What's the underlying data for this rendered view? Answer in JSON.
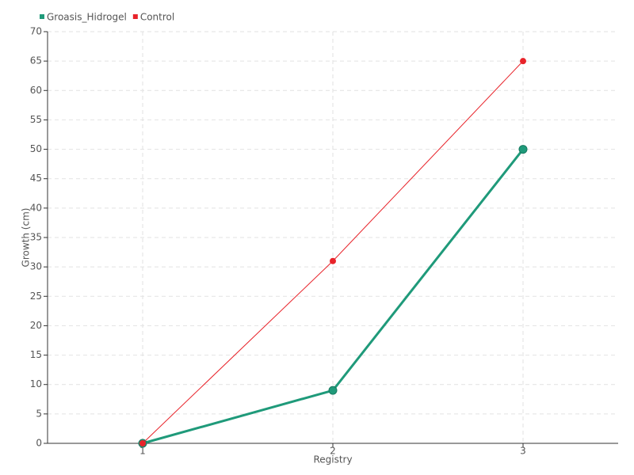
{
  "chart_data": {
    "type": "line",
    "x_label": "Registry",
    "y_label": "Growth (cm)",
    "x": [
      1,
      2,
      3
    ],
    "xlim": [
      0.5,
      3.5
    ],
    "xticks": [
      1,
      2,
      3
    ],
    "ylim": [
      0,
      70
    ],
    "yticks": [
      0,
      5,
      10,
      15,
      20,
      25,
      30,
      35,
      40,
      45,
      50,
      55,
      60,
      65,
      70
    ],
    "grid": true,
    "legend": "top-left",
    "series": [
      {
        "name": "Groasis_Hidrogel",
        "color": "#1f9a7a",
        "values": [
          0,
          9,
          50
        ]
      },
      {
        "name": "Control",
        "color": "#e8232a",
        "values": [
          0,
          31,
          65
        ]
      }
    ]
  }
}
